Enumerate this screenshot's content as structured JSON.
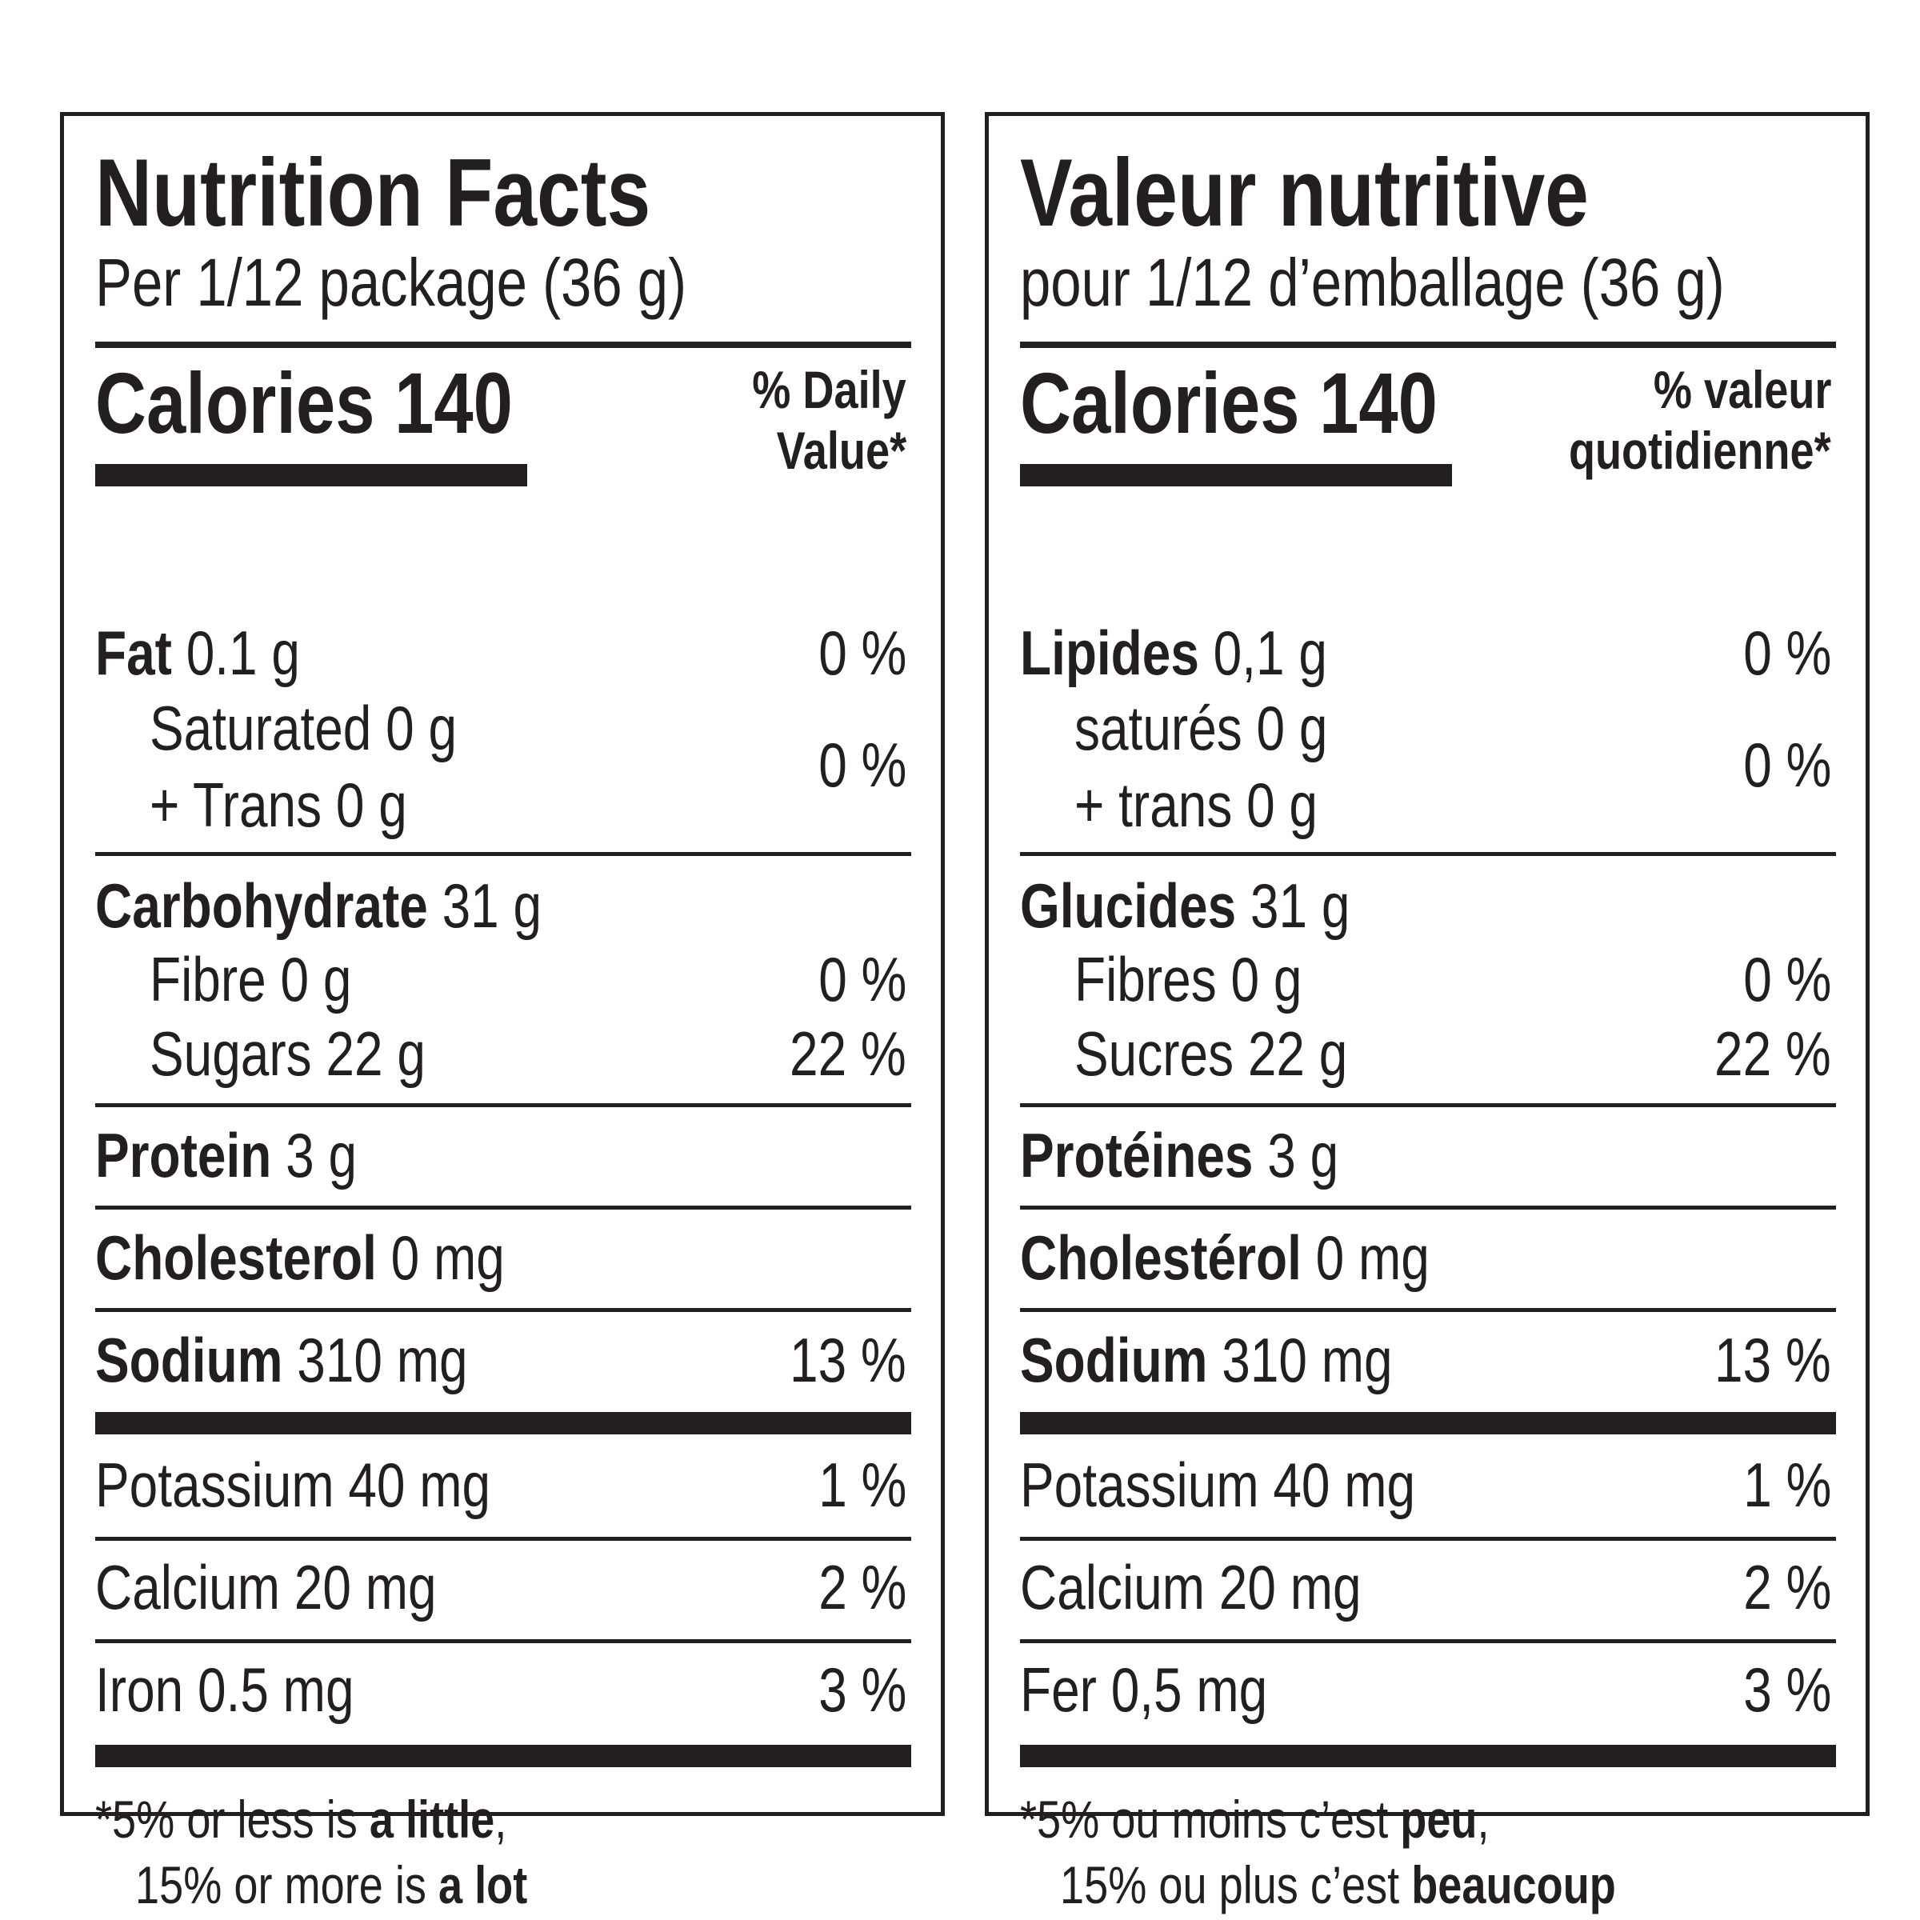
{
  "en": {
    "title": "Nutrition Facts",
    "serving": "Per 1/12 package (36 g)",
    "calories_label": "Calories 140",
    "dv_line1": "% Daily",
    "dv_line2": "Value*",
    "fat_name": "Fat",
    "fat_amt": " 0.1 g",
    "fat_pct": "0 %",
    "sat": "Saturated 0 g",
    "trans": "+ Trans 0 g",
    "sat_trans_pct": "0 %",
    "carb_name": "Carbohydrate",
    "carb_amt": " 31 g",
    "fibre": "Fibre 0 g",
    "fibre_pct": "0 %",
    "sugars": "Sugars 22 g",
    "sugars_pct": "22 %",
    "protein_name": "Protein",
    "protein_amt": " 3 g",
    "chol_name": "Cholesterol",
    "chol_amt": " 0 mg",
    "sodium_name": "Sodium",
    "sodium_amt": " 310 mg",
    "sodium_pct": "13 %",
    "potassium": "Potassium 40 mg",
    "potassium_pct": "1 %",
    "calcium": "Calcium 20 mg",
    "calcium_pct": "2 %",
    "iron": "Iron 0.5 mg",
    "iron_pct": "3 %",
    "foot1_a": "*5% or less is ",
    "foot1_b": "a little",
    "foot1_c": ",",
    "foot2_a": "15% or more is ",
    "foot2_b": "a lot"
  },
  "fr": {
    "title": "Valeur nutritive",
    "serving": "pour 1/12 d’emballage (36 g)",
    "calories_label": "Calories 140",
    "dv_line1": "% valeur",
    "dv_line2": "quotidienne*",
    "fat_name": "Lipides",
    "fat_amt": " 0,1 g",
    "fat_pct": "0 %",
    "sat": "saturés 0 g",
    "trans": "+ trans 0 g",
    "sat_trans_pct": "0 %",
    "carb_name": "Glucides",
    "carb_amt": " 31 g",
    "fibre": "Fibres 0 g",
    "fibre_pct": "0 %",
    "sugars": "Sucres 22 g",
    "sugars_pct": "22 %",
    "protein_name": "Protéines",
    "protein_amt": " 3 g",
    "chol_name": "Cholestérol",
    "chol_amt": " 0 mg",
    "sodium_name": "Sodium",
    "sodium_amt": " 310 mg",
    "sodium_pct": "13 %",
    "potassium": "Potassium 40 mg",
    "potassium_pct": "1 %",
    "calcium": "Calcium 20 mg",
    "calcium_pct": "2 %",
    "iron": "Fer 0,5 mg",
    "iron_pct": "3 %",
    "foot1_a": "*5% ou moins c’est ",
    "foot1_b": "peu",
    "foot1_c": ",",
    "foot2_a": "15% ou plus c’est ",
    "foot2_b": "beaucoup"
  }
}
